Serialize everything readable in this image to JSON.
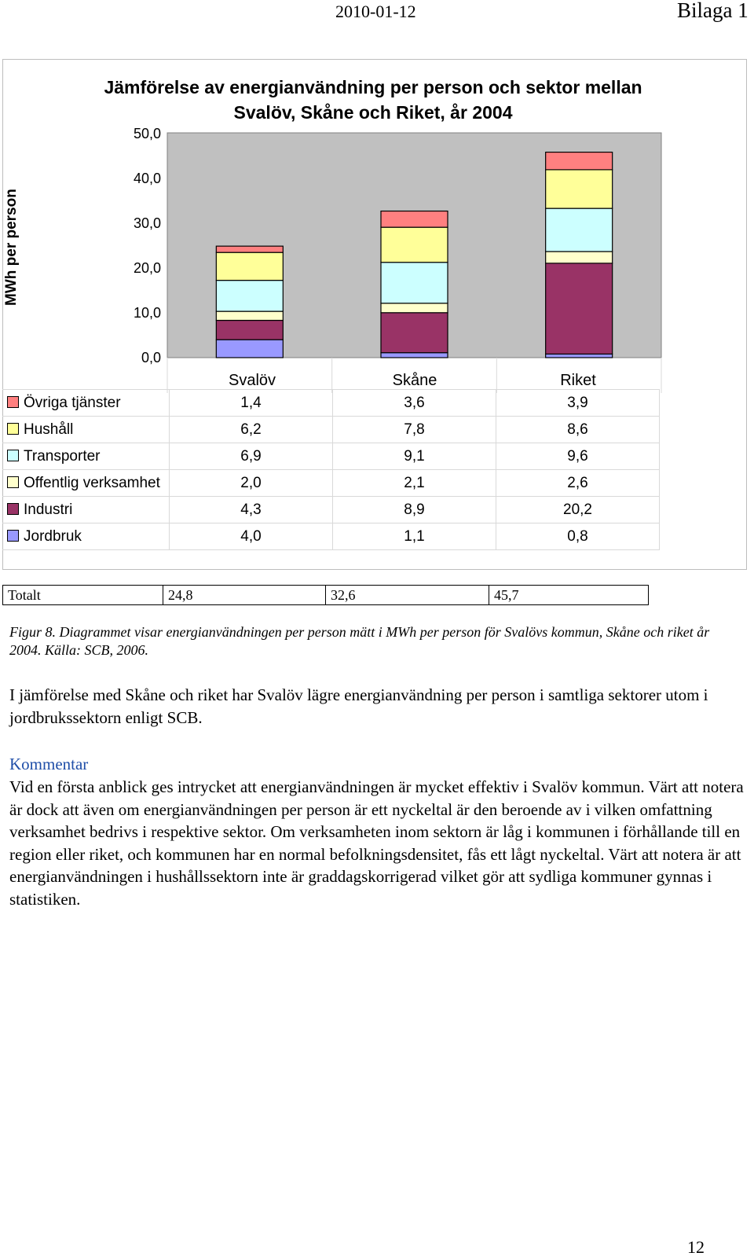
{
  "header": {
    "date": "2010-01-12",
    "bilaga": "Bilaga 1"
  },
  "chart_data": {
    "type": "bar",
    "stacked": true,
    "title_line1": "Jämförelse av energianvändning per person och sektor mellan",
    "title_line2": "Svalöv, Skåne och Riket, år 2004",
    "ylabel": "MWh per person",
    "ylim": [
      0,
      50
    ],
    "yticks": [
      "50,0",
      "40,0",
      "30,0",
      "20,0",
      "10,0",
      "0,0"
    ],
    "categories": [
      "Svalöv",
      "Skåne",
      "Riket"
    ],
    "series": [
      {
        "name": "Jordbruk",
        "values": [
          4.0,
          1.1,
          0.8
        ],
        "labels": [
          "4,0",
          "1,1",
          "0,8"
        ],
        "color": "#9999ff"
      },
      {
        "name": "Industri",
        "values": [
          4.3,
          8.9,
          20.2
        ],
        "labels": [
          "4,3",
          "8,9",
          "20,2"
        ],
        "color": "#993366"
      },
      {
        "name": "Offentlig verksamhet",
        "values": [
          2.0,
          2.1,
          2.6
        ],
        "labels": [
          "2,0",
          "2,1",
          "2,6"
        ],
        "color": "#ffffcc"
      },
      {
        "name": "Transporter",
        "values": [
          6.9,
          9.1,
          9.6
        ],
        "labels": [
          "6,9",
          "9,1",
          "9,6"
        ],
        "color": "#ccffff"
      },
      {
        "name": "Hushåll",
        "values": [
          6.2,
          7.8,
          8.6
        ],
        "labels": [
          "6,2",
          "7,8",
          "8,6"
        ],
        "color": "#ffff99"
      },
      {
        "name": "Övriga tjänster",
        "values": [
          1.4,
          3.6,
          3.9
        ],
        "labels": [
          "1,4",
          "3,6",
          "3,9"
        ],
        "color": "#ff8080"
      }
    ],
    "plot_bg": "#c0c0c0"
  },
  "totals": {
    "label": "Totalt",
    "values": [
      "24,8",
      "32,6",
      "45,7"
    ]
  },
  "caption": "Figur 8. Diagrammet visar energianvändningen per person mätt i MWh per person för Svalövs kommun, Skåne och riket år 2004. Källa: SCB, 2006.",
  "paragraph1": "I jämförelse med Skåne och riket har Svalöv lägre energianvändning per person i samtliga sektorer utom i jordbrukssektorn enligt SCB.",
  "comment_heading": "Kommentar",
  "paragraph2": "Vid en första anblick ges intrycket att energianvändningen är mycket effektiv i Svalöv kommun. Värt att notera är dock att även om energianvändningen per person är ett nyckeltal är den beroende av i vilken omfattning verksamhet bedrivs i respektive sektor. Om verksamheten inom sektorn är låg i kommunen i förhållande till en region eller riket, och kommunen har en normal befolkningsdensitet, fås ett lågt nyckeltal. Värt att notera är att energianvändningen i hushållssektorn inte är graddagskorrigerad vilket gör att sydliga kommuner gynnas i statistiken.",
  "page_number": "12"
}
